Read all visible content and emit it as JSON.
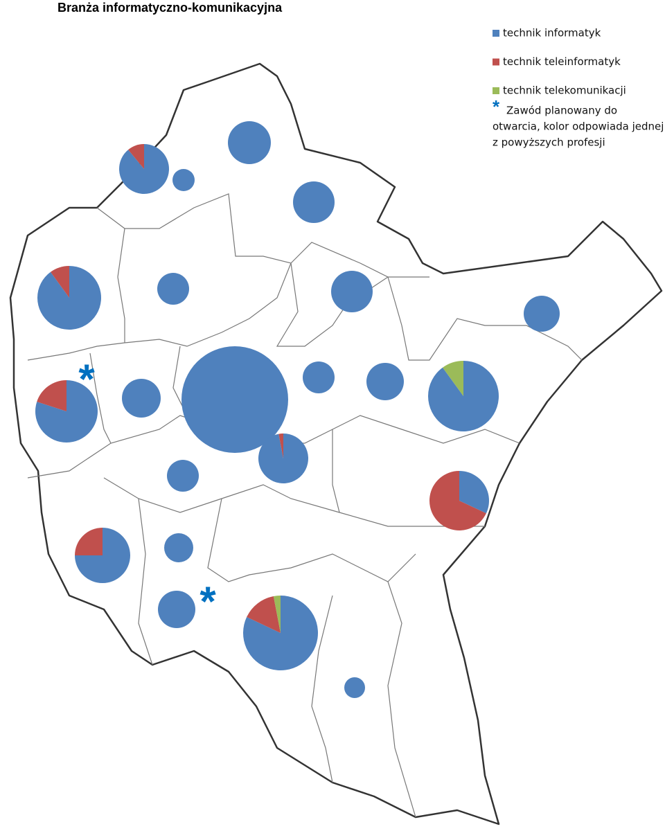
{
  "title": "Branża informatyczno-komunikacyjna",
  "legend": [
    {
      "label": "technik informatyk",
      "color": "#4f81bd"
    },
    {
      "label": "technik teleinformatyk",
      "color": "#c0504d"
    },
    {
      "label": "technik telekomunikacji",
      "color": "#9bbb59"
    }
  ],
  "note": {
    "symbol": "*",
    "lines": [
      "Zawód planowany do",
      "otwarcia, kolor odpowiada jednej",
      "z powyższych profesji"
    ]
  },
  "pies": [
    {
      "values": [
        89,
        11,
        0
      ]
    },
    {
      "values": [
        100,
        0,
        0
      ]
    },
    {
      "values": [
        100,
        0,
        0
      ]
    },
    {
      "values": [
        100,
        0,
        0
      ]
    },
    {
      "values": [
        90,
        10,
        0
      ]
    },
    {
      "values": [
        100,
        0,
        0
      ]
    },
    {
      "values": [
        100,
        0,
        0
      ]
    },
    {
      "values": [
        100,
        0,
        0
      ]
    },
    {
      "values": [
        80,
        20,
        0
      ],
      "planned": true
    },
    {
      "values": [
        100,
        0,
        0
      ]
    },
    {
      "values": [
        100,
        0,
        0
      ]
    },
    {
      "values": [
        100,
        0,
        0
      ]
    },
    {
      "values": [
        100,
        0,
        0
      ]
    },
    {
      "values": [
        90,
        0,
        10
      ]
    },
    {
      "values": [
        97,
        3,
        0
      ]
    },
    {
      "values": [
        100,
        0,
        0
      ]
    },
    {
      "values": [
        32,
        68,
        0
      ]
    },
    {
      "values": [
        75,
        25,
        0
      ]
    },
    {
      "values": [
        100,
        0,
        0
      ]
    },
    {
      "values": [
        100,
        0,
        0
      ],
      "planned": true
    },
    {
      "values": [
        82,
        15,
        3
      ]
    },
    {
      "values": [
        100,
        0,
        0
      ]
    }
  ]
}
